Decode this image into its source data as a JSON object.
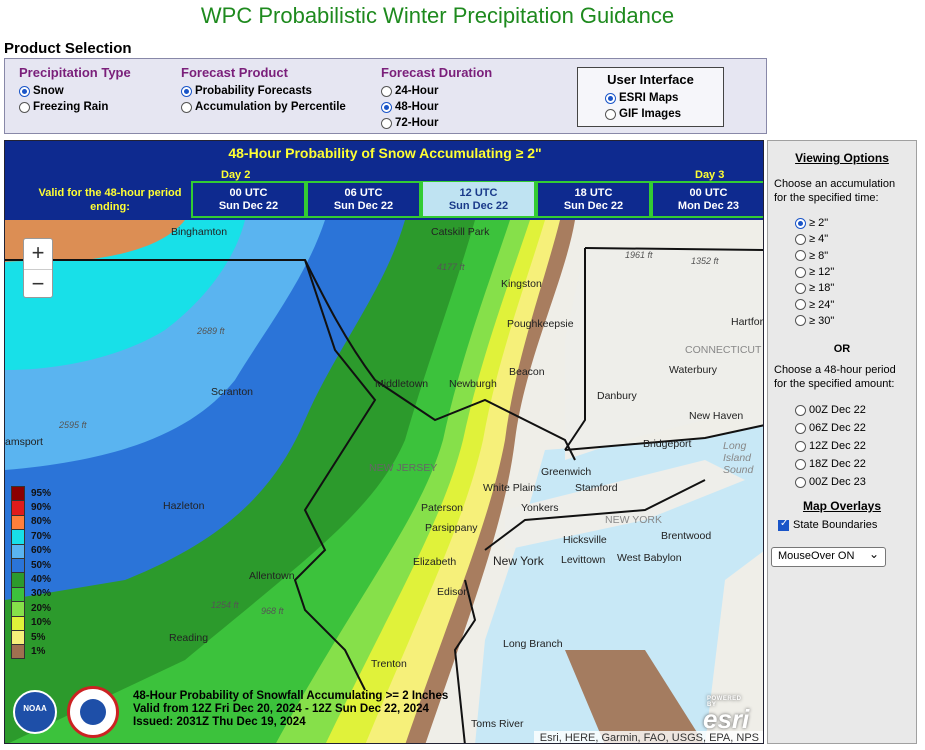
{
  "page_title": "WPC Probabilistic Winter Precipitation Guidance",
  "product_selection": {
    "heading": "Product Selection",
    "precip_type": {
      "title": "Precipitation Type",
      "options": [
        "Snow",
        "Freezing Rain"
      ],
      "selected": 0
    },
    "forecast_product": {
      "title": "Forecast Product",
      "options": [
        "Probability Forecasts",
        "Accumulation by Percentile"
      ],
      "selected": 0
    },
    "forecast_duration": {
      "title": "Forecast Duration",
      "options": [
        "24-Hour",
        "48-Hour",
        "72-Hour"
      ],
      "selected": 1
    },
    "user_interface": {
      "title": "User Interface",
      "options": [
        "ESRI Maps",
        "GIF Images"
      ],
      "selected": 0
    }
  },
  "map_panel": {
    "title": "48-Hour Probability of Snow Accumulating ≥ 2\"",
    "valid_label": "Valid for the 48-hour period ending:",
    "days": [
      "Day 2",
      "Day 3"
    ],
    "times": [
      {
        "utc": "00 UTC",
        "date": "Sun Dec 22"
      },
      {
        "utc": "06 UTC",
        "date": "Sun Dec 22"
      },
      {
        "utc": "12 UTC",
        "date": "Sun Dec 22"
      },
      {
        "utc": "18 UTC",
        "date": "Sun Dec 22"
      },
      {
        "utc": "00 UTC",
        "date": "Mon Dec 23"
      }
    ],
    "selected_time": 2,
    "zoom_in": "+",
    "zoom_out": "−",
    "legend": [
      {
        "label": "95%",
        "color": "#8b0000"
      },
      {
        "label": "90%",
        "color": "#e01b1b"
      },
      {
        "label": "80%",
        "color": "#ff7f3a"
      },
      {
        "label": "70%",
        "color": "#18e0e8"
      },
      {
        "label": "60%",
        "color": "#5ab4f0"
      },
      {
        "label": "50%",
        "color": "#2b74d8"
      },
      {
        "label": "40%",
        "color": "#2c9a2c"
      },
      {
        "label": "30%",
        "color": "#3cc23c"
      },
      {
        "label": "20%",
        "color": "#86e04a"
      },
      {
        "label": "10%",
        "color": "#e0f23a"
      },
      {
        "label": "5%",
        "color": "#f6f07a"
      },
      {
        "label": "1%",
        "color": "#a07050"
      }
    ],
    "caption": [
      "48-Hour Probability of Snowfall Accumulating >= 2 Inches",
      "Valid from 12Z Fri Dec 20, 2024 - 12Z Sun Dec 22, 2024",
      "Issued: 2031Z Thu Dec 19, 2024"
    ],
    "attribution": "Esri, HERE, Garmin, FAO, USGS, EPA, NPS",
    "esri_powered": "POWERED BY",
    "esri_logo": "esri",
    "noaa_logo": "NOAA",
    "places": [
      "Binghamton",
      "Catskill Park",
      "Kingston",
      "Poughkeepsie",
      "Middletown",
      "Newburgh",
      "Beacon",
      "Scranton",
      "NEW JERSEY",
      "Danbury",
      "Waterbury",
      "Hartford",
      "CONNECTICUT",
      "New Haven",
      "Bridgeport",
      "Long Island Sound",
      "Greenwich",
      "Stamford",
      "White Plains",
      "Yonkers",
      "Paterson",
      "Parsippany",
      "Hazleton",
      "Hicksville",
      "Brentwood",
      "NEW YORK",
      "Elizabeth",
      "New York",
      "Levittown",
      "West Babylon",
      "Allentown",
      "Edison",
      "Reading",
      "Trenton",
      "Long Branch",
      "Toms River",
      "amsport"
    ],
    "elevations": [
      "4177 ft",
      "1961 ft",
      "1352 ft",
      "2689 ft",
      "2595 ft",
      "1254 ft",
      "968 ft"
    ]
  },
  "viewing_options": {
    "title": "Viewing Options",
    "accum_prompt": "Choose an accumulation for the specified time:",
    "accum_options": [
      "≥ 2\"",
      "≥ 4\"",
      "≥ 8\"",
      "≥ 12\"",
      "≥ 18\"",
      "≥ 24\"",
      "≥ 30\""
    ],
    "accum_selected": 0,
    "or": "OR",
    "period_prompt": "Choose a 48-hour period for the specified amount:",
    "period_options": [
      "00Z Dec 22",
      "06Z Dec 22",
      "12Z Dec 22",
      "18Z Dec 22",
      "00Z Dec 23"
    ],
    "overlays_title": "Map Overlays",
    "state_boundaries": "State Boundaries",
    "mouseover": "MouseOver ON"
  }
}
